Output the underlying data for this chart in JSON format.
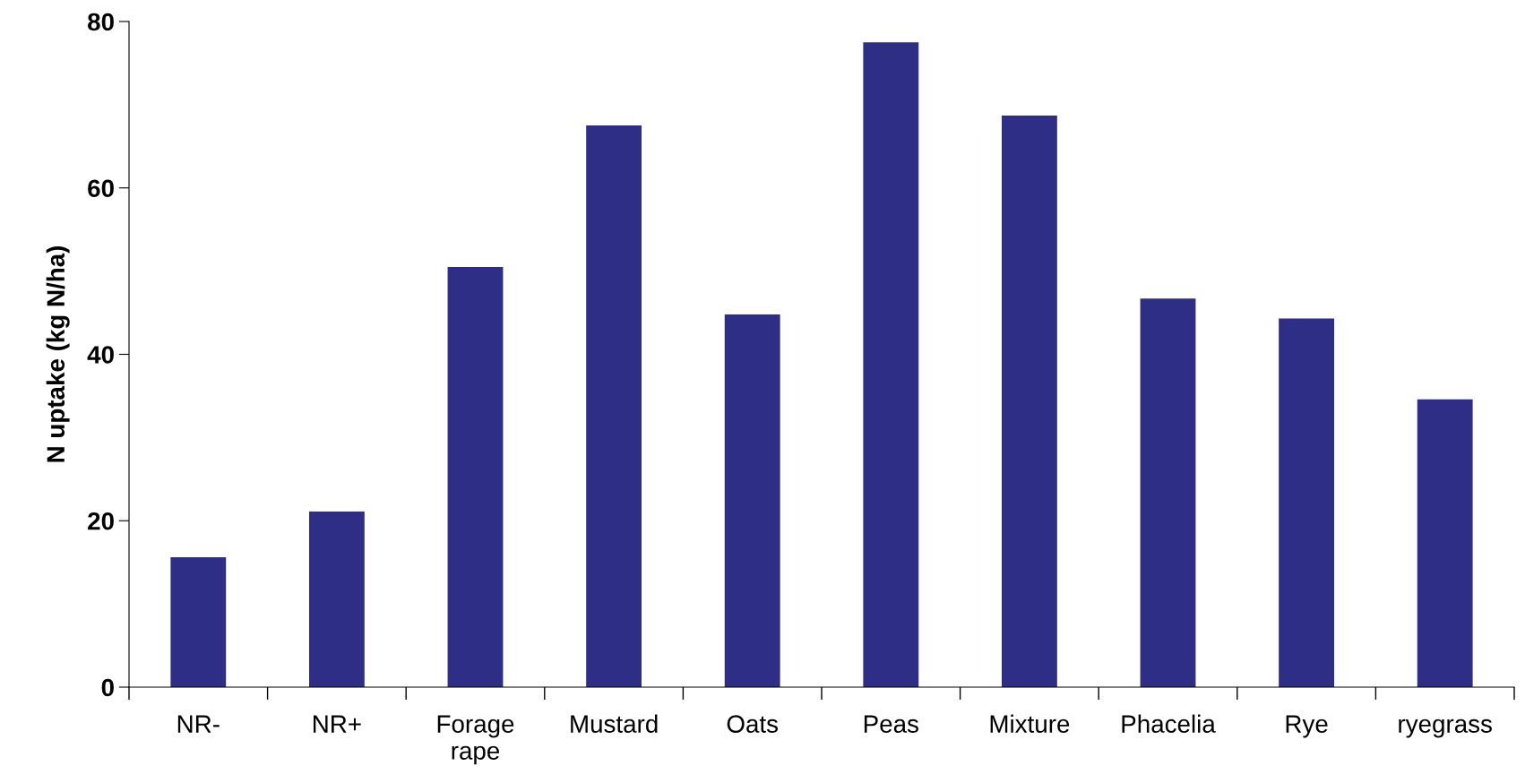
{
  "chart_data": {
    "type": "bar",
    "ylabel": "N uptake (kg N/ha)",
    "categories": [
      "NR-",
      "NR+",
      "Forage rape",
      "Mustard",
      "Oats",
      "Peas",
      "Mixture",
      "Phacelia",
      "Rye",
      "ryegrass"
    ],
    "values": [
      15.6,
      21.1,
      50.5,
      67.5,
      44.8,
      77.5,
      68.7,
      46.7,
      44.3,
      34.6
    ],
    "color": "#2e2e87",
    "ylim": [
      0,
      80
    ],
    "yticks": [
      0,
      20,
      40,
      60,
      80
    ],
    "grid": false,
    "legend": false
  }
}
